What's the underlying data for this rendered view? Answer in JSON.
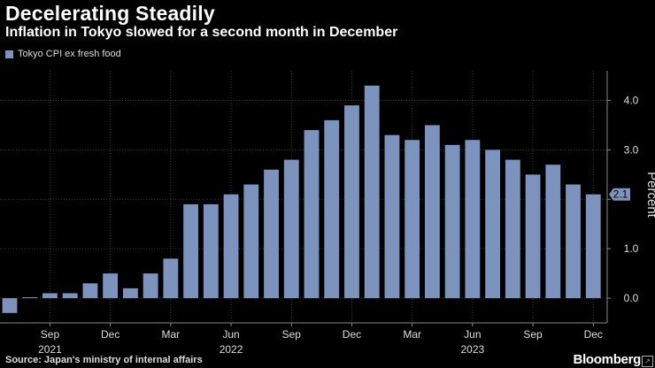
{
  "header": {
    "title": "Decelerating Steadily",
    "subtitle": "Inflation in Tokyo slowed for a second month in December"
  },
  "footer": {
    "source": "Source: Japan's ministry of internal affairs",
    "brand": "Bloomberg"
  },
  "chart_data": {
    "type": "bar",
    "title": "Decelerating Steadily",
    "subtitle": "Inflation in Tokyo slowed for a second month in December",
    "legend": [
      "Tokyo CPI ex fresh food"
    ],
    "ylabel": "Percent",
    "ylim": [
      -0.5,
      4.6
    ],
    "yticks": [
      0.0,
      1.0,
      2.0,
      3.0,
      4.0
    ],
    "ytick_labels": [
      "0.0",
      "1.0",
      "",
      "3.0",
      "4.0"
    ],
    "last_value_label": "2.1",
    "bar_color": "#7b93bd",
    "categories": [
      "2021-07",
      "2021-08",
      "2021-09",
      "2021-10",
      "2021-11",
      "2021-12",
      "2022-01",
      "2022-02",
      "2022-03",
      "2022-04",
      "2022-05",
      "2022-06",
      "2022-07",
      "2022-08",
      "2022-09",
      "2022-10",
      "2022-11",
      "2022-12",
      "2023-01",
      "2023-02",
      "2023-03",
      "2023-04",
      "2023-05",
      "2023-06",
      "2023-07",
      "2023-08",
      "2023-09",
      "2023-10",
      "2023-11",
      "2023-12"
    ],
    "values": [
      -0.3,
      0.0,
      0.1,
      0.1,
      0.3,
      0.5,
      0.2,
      0.5,
      0.8,
      1.9,
      1.9,
      2.1,
      2.3,
      2.6,
      2.8,
      3.4,
      3.6,
      3.9,
      4.3,
      3.3,
      3.2,
      3.5,
      3.1,
      3.2,
      3.0,
      2.8,
      2.5,
      2.7,
      2.3,
      2.1
    ],
    "x_tick_labels": [
      {
        "index": 2,
        "label": "Sep"
      },
      {
        "index": 5,
        "label": "Dec"
      },
      {
        "index": 8,
        "label": "Mar"
      },
      {
        "index": 11,
        "label": "Jun"
      },
      {
        "index": 14,
        "label": "Sep"
      },
      {
        "index": 17,
        "label": "Dec"
      },
      {
        "index": 20,
        "label": "Mar"
      },
      {
        "index": 23,
        "label": "Jun"
      },
      {
        "index": 26,
        "label": "Sep"
      },
      {
        "index": 29,
        "label": "Dec"
      }
    ],
    "year_labels": [
      {
        "index": 2,
        "label": "2021"
      },
      {
        "index": 11,
        "label": "2022"
      },
      {
        "index": 23,
        "label": "2023"
      }
    ]
  }
}
